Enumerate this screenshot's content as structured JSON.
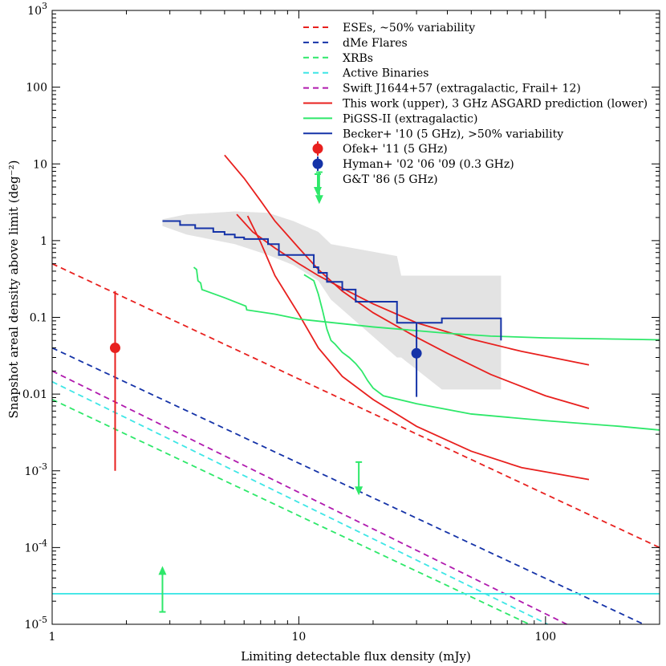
{
  "chart_data": {
    "type": "line",
    "xlabel": "Limiting detectable flux density (mJy)",
    "ylabel": "Snapshot areal density above limit (deg⁻²)",
    "xscale": "log",
    "yscale": "log",
    "xlim": [
      1,
      290
    ],
    "ylim": [
      1e-05,
      1000
    ],
    "x_ticks": [
      {
        "value": 1,
        "label": "1"
      },
      {
        "value": 10,
        "label": "10"
      },
      {
        "value": 100,
        "label": "100"
      }
    ],
    "y_ticks": [
      {
        "value": 1e-05,
        "base": "10",
        "exp": "-5"
      },
      {
        "value": 0.0001,
        "base": "10",
        "exp": "-4"
      },
      {
        "value": 0.001,
        "base": "10",
        "exp": "-3"
      },
      {
        "value": 0.01,
        "label": "0.01"
      },
      {
        "value": 0.1,
        "label": "0.1"
      },
      {
        "value": 1,
        "label": "1"
      },
      {
        "value": 10,
        "label": "10"
      },
      {
        "value": 100,
        "label": "100"
      },
      {
        "value": 1000,
        "base": "10",
        "exp": "3"
      }
    ],
    "legend_position": "top-right",
    "series": [
      {
        "name": "ESEs, ~50% variability",
        "color": "#e8201e",
        "dash": true,
        "x": [
          1,
          290
        ],
        "y": [
          0.5,
          0.0001
        ]
      },
      {
        "name": "dMe Flares",
        "color": "#1533a8",
        "dash": true,
        "x": [
          1,
          250
        ],
        "y": [
          0.04,
          1e-05
        ]
      },
      {
        "name": "XRBs",
        "color": "#2ee86a",
        "dash": true,
        "x": [
          1,
          86
        ],
        "y": [
          0.0085,
          1e-05
        ]
      },
      {
        "name": "Active Binaries",
        "color": "#3ee6e6",
        "dash": true,
        "x": [
          1,
          102
        ],
        "y": [
          0.0145,
          1e-05
        ]
      },
      {
        "name": "Swift J1644+57 (extragalactic, Frail+ 12)",
        "color": "#b01aae",
        "dash": true,
        "x": [
          1,
          122
        ],
        "y": [
          0.02,
          1e-05
        ]
      },
      {
        "name": "This work (upper), 3 GHz ASGARD prediction (lower)",
        "color": "#e8201e",
        "dash": false,
        "x": [
          5,
          6,
          7,
          8,
          10,
          12,
          15,
          20,
          30,
          40,
          60,
          100,
          150
        ],
        "y": [
          13,
          6.5,
          3.3,
          1.8,
          0.8,
          0.42,
          0.22,
          0.115,
          0.055,
          0.034,
          0.018,
          0.0095,
          0.0065
        ]
      },
      {
        "name": "This work (upper), 3 GHz ASGARD prediction (lower)",
        "color": "#e8201e",
        "dash": false,
        "x": [
          6.2,
          7,
          8,
          10,
          12,
          15,
          20,
          30,
          50,
          80,
          150
        ],
        "y": [
          2.1,
          0.95,
          0.35,
          0.11,
          0.04,
          0.017,
          0.0085,
          0.0038,
          0.0018,
          0.0011,
          0.00077
        ]
      },
      {
        "name": "This work (upper), 3 GHz ASGARD prediction (lower)",
        "color": "#e8201e",
        "dash": false,
        "x": [
          5.6,
          6.5,
          8,
          10,
          12,
          15,
          20,
          30,
          50,
          80,
          150
        ],
        "y": [
          2.2,
          1.3,
          0.8,
          0.5,
          0.35,
          0.24,
          0.15,
          0.085,
          0.052,
          0.036,
          0.024
        ]
      },
      {
        "name": "PiGSS-II (extragalactic)",
        "color": "#2ee86a",
        "dash": false,
        "x": [
          3.75,
          3.85,
          3.9,
          4,
          4.05,
          5,
          6.1,
          6.15,
          8,
          10,
          20,
          40,
          60,
          100,
          200,
          290
        ],
        "y": [
          0.45,
          0.42,
          0.3,
          0.28,
          0.23,
          0.18,
          0.14,
          0.125,
          0.11,
          0.095,
          0.075,
          0.062,
          0.057,
          0.054,
          0.052,
          0.051
        ]
      },
      {
        "name": "PiGSS-II (extragalactic)",
        "color": "#2ee86a",
        "dash": false,
        "x": [
          10.5,
          11.5,
          12,
          12.5,
          13,
          13.5,
          14,
          15,
          16,
          17,
          18,
          19,
          20,
          22,
          30,
          50,
          100,
          200,
          290
        ],
        "y": [
          0.36,
          0.3,
          0.2,
          0.12,
          0.07,
          0.05,
          0.045,
          0.035,
          0.03,
          0.025,
          0.02,
          0.015,
          0.012,
          0.0095,
          0.0075,
          0.0055,
          0.0045,
          0.0038,
          0.0034
        ]
      },
      {
        "name": "Becker+ '10 (5 GHz), >50% variability",
        "color": "#1533a8",
        "dash": false,
        "step": true,
        "x": [
          2.8,
          3.3,
          3.8,
          4.5,
          5.0,
          5.5,
          6.0,
          7.5,
          8.3,
          11.5,
          12.0,
          13.0,
          15.0,
          17.0,
          25.0,
          38.0,
          66.0
        ],
        "y": [
          1.8,
          1.6,
          1.45,
          1.3,
          1.2,
          1.1,
          1.05,
          0.9,
          0.65,
          0.45,
          0.38,
          0.29,
          0.23,
          0.16,
          0.085,
          0.097,
          0.05
        ]
      },
      {
        "name": "Becker+ '10 shaded range",
        "color": "#e3e3e3",
        "band": true,
        "x": [
          2.8,
          3.5,
          5.5,
          7.5,
          9.5,
          12.0,
          13.5,
          25.0,
          26.0,
          38.0,
          66.0
        ],
        "y_upper": [
          1.9,
          2.2,
          2.4,
          2.3,
          1.8,
          1.3,
          0.9,
          0.63,
          0.35,
          0.35,
          0.35
        ],
        "y_lower": [
          1.55,
          1.2,
          0.9,
          0.65,
          0.48,
          0.3,
          0.17,
          0.03,
          0.03,
          0.0115,
          0.0115
        ]
      },
      {
        "name": "This work / PiGSS-II horizontal line",
        "color": "#3ee6e6",
        "dash": false,
        "x": [
          1,
          290
        ],
        "y": [
          2.5e-05,
          2.5e-05
        ]
      }
    ],
    "points": [
      {
        "name": "Ofek+ '11 (5 GHz)",
        "color": "#e8201e",
        "x": 1.8,
        "y": 0.04,
        "yerr_low": 0.001,
        "yerr_high": 0.22
      },
      {
        "name": "Hyman+ '02 '06 '09 (0.3 GHz)",
        "color": "#1533a8",
        "x": 30,
        "y": 0.034,
        "yerr_low": 0.0092,
        "yerr_high": 0.085
      }
    ],
    "limits": [
      {
        "name": "G&T '86 (5 GHz)",
        "color": "#2ee86a",
        "x": 12.1,
        "y_from": 7.8,
        "y_to": 3.0
      },
      {
        "name": "G&T '86 (5 GHz)",
        "color": "#2ee86a",
        "x": 17.5,
        "y_from": 0.0013,
        "y_to": 0.00048
      },
      {
        "name": "G&T '86 (5 GHz)",
        "color": "#2ee86a",
        "x": 2.8,
        "y_from": 1.45e-05,
        "y_to": 5.75e-05
      }
    ],
    "legend": [
      {
        "label": "ESEs, ~50% variability",
        "color": "#e8201e",
        "kind": "dash"
      },
      {
        "label": "dMe Flares",
        "color": "#1533a8",
        "kind": "dash"
      },
      {
        "label": "XRBs",
        "color": "#2ee86a",
        "kind": "dash"
      },
      {
        "label": "Active Binaries",
        "color": "#3ee6e6",
        "kind": "dash"
      },
      {
        "label": "Swift J1644+57 (extragalactic, Frail+ 12)",
        "color": "#b01aae",
        "kind": "dash"
      },
      {
        "label": "This work (upper), 3 GHz ASGARD prediction (lower)",
        "color": "#e8201e",
        "kind": "line"
      },
      {
        "label": "PiGSS-II (extragalactic)",
        "color": "#2ee86a",
        "kind": "line"
      },
      {
        "label": "Becker+ '10 (5 GHz), >50% variability",
        "color": "#1533a8",
        "kind": "line"
      },
      {
        "label": "Ofek+ '11 (5 GHz)",
        "color": "#e8201e",
        "kind": "point"
      },
      {
        "label": "Hyman+ '02 '06 '09 (0.3 GHz)",
        "color": "#1533a8",
        "kind": "point"
      },
      {
        "label": "G&T '86 (5 GHz)",
        "color": "#2ee86a",
        "kind": "arrow"
      }
    ]
  }
}
